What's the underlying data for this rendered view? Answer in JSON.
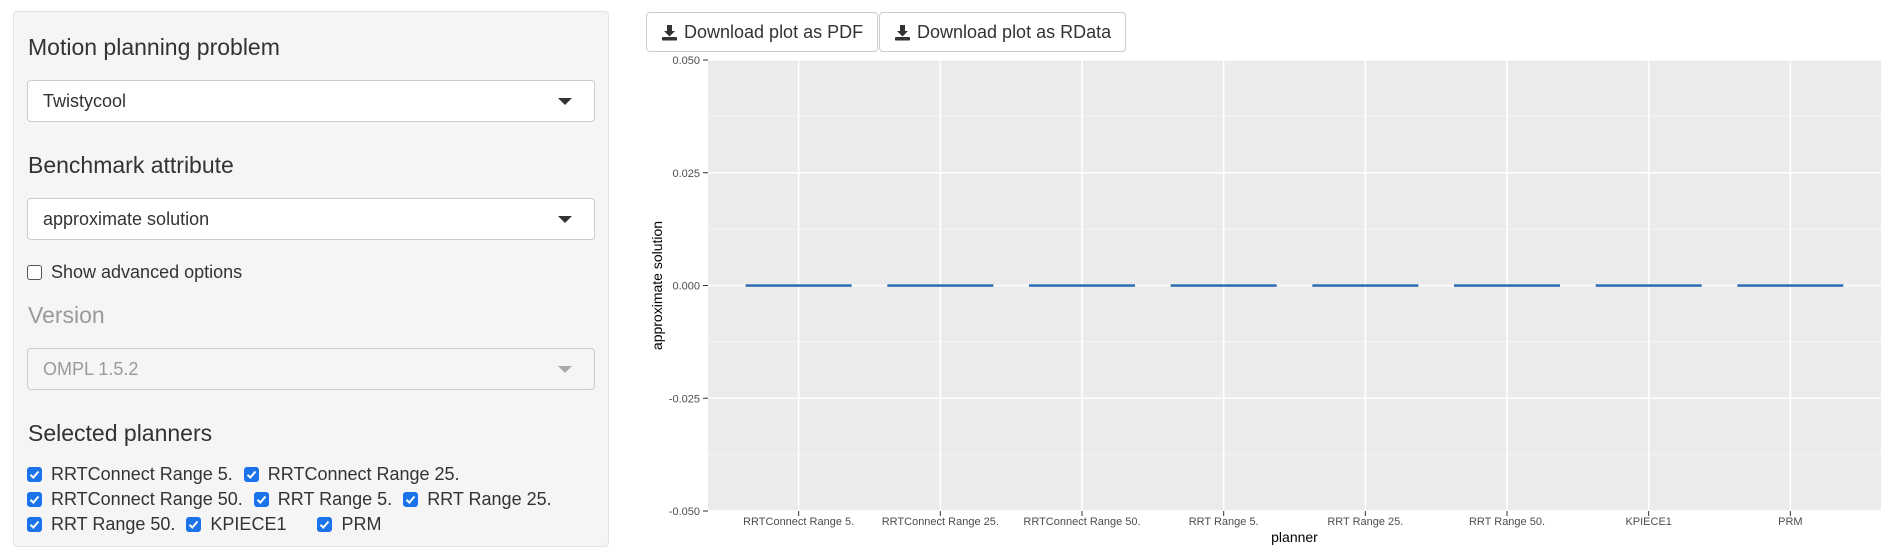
{
  "sidebar": {
    "problem": {
      "label": "Motion planning problem",
      "selected": "Twistycool"
    },
    "attribute": {
      "label": "Benchmark attribute",
      "selected": "approximate solution"
    },
    "advanced": {
      "label": "Show advanced options",
      "checked": false
    },
    "version": {
      "label": "Version",
      "selected": "OMPL 1.5.2",
      "disabled": true
    },
    "planners": {
      "label": "Selected planners",
      "items": [
        {
          "label": "RRTConnect Range 5.",
          "checked": true
        },
        {
          "label": "RRTConnect Range 25.",
          "checked": true
        },
        {
          "label": "RRTConnect Range 50.",
          "checked": true
        },
        {
          "label": "RRT Range 5.",
          "checked": true
        },
        {
          "label": "RRT Range 25.",
          "checked": true
        },
        {
          "label": "RRT Range 50.",
          "checked": true
        },
        {
          "label": "KPIECE1",
          "checked": true
        },
        {
          "label": "PRM",
          "checked": true
        }
      ]
    }
  },
  "toolbar": {
    "pdf_label": "Download plot as PDF",
    "rdata_label": "Download plot as RData",
    "icon": "download-icon"
  },
  "chart_data": {
    "type": "bar",
    "xlabel": "planner",
    "ylabel": "approximate solution",
    "categories": [
      "RRTConnect Range 5.",
      "RRTConnect Range 25.",
      "RRTConnect Range 50.",
      "RRT Range 5.",
      "RRT Range 25.",
      "RRT Range 50.",
      "KPIECE1",
      "PRM"
    ],
    "values": [
      0,
      0,
      0,
      0,
      0,
      0,
      0,
      0
    ],
    "ylim": [
      -0.05,
      0.05
    ],
    "yticks": [
      "-0.050",
      "-0.025",
      "0.000",
      "0.025",
      "0.050"
    ],
    "ytick_values": [
      -0.05,
      -0.025,
      0,
      0.025,
      0.05
    ],
    "grid": true,
    "series_color": "#2b6cb0",
    "panel_color": "#ebebeb"
  }
}
